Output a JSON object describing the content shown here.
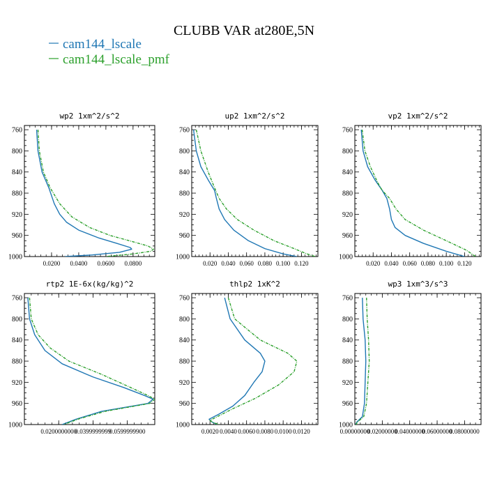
{
  "page": {
    "title": "CLUBB VAR at280E,5N"
  },
  "legend": [
    {
      "label": "cam144_lscale",
      "color": "#1f77b4"
    },
    {
      "label": "cam144_lscale_pmf",
      "color": "#2ca02c"
    }
  ],
  "chart_data": [
    {
      "type": "line",
      "title": "wp2  1xm^2/s^2",
      "xlim": [
        0.0,
        0.096
      ],
      "ylim": [
        1000,
        752
      ],
      "y_ticks": [
        "760",
        "800",
        "840",
        "880",
        "920",
        "960",
        "1000"
      ],
      "x_ticks": [
        {
          "v": 0.02,
          "label": "0.0200"
        },
        {
          "v": 0.04,
          "label": "0.0400"
        },
        {
          "v": 0.06,
          "label": "0.0600"
        },
        {
          "v": 0.08,
          "label": "0.0800"
        }
      ],
      "series": [
        {
          "name": "cam144_lscale",
          "color": "#1f77b4",
          "dash": false,
          "points": [
            [
              0.009,
              760
            ],
            [
              0.01,
              800
            ],
            [
              0.013,
              840
            ],
            [
              0.018,
              870
            ],
            [
              0.022,
              900
            ],
            [
              0.026,
              920
            ],
            [
              0.031,
              935
            ],
            [
              0.04,
              950
            ],
            [
              0.055,
              965
            ],
            [
              0.068,
              975
            ],
            [
              0.078,
              983
            ],
            [
              0.079,
              986
            ],
            [
              0.07,
              992
            ],
            [
              0.05,
              997
            ],
            [
              0.03,
              1000
            ]
          ]
        },
        {
          "name": "cam144_lscale_pmf",
          "color": "#2ca02c",
          "dash": true,
          "points": [
            [
              0.01,
              760
            ],
            [
              0.011,
              800
            ],
            [
              0.014,
              840
            ],
            [
              0.019,
              870
            ],
            [
              0.026,
              900
            ],
            [
              0.035,
              925
            ],
            [
              0.048,
              945
            ],
            [
              0.063,
              960
            ],
            [
              0.08,
              972
            ],
            [
              0.091,
              980
            ],
            [
              0.095,
              986
            ],
            [
              0.093,
              990
            ],
            [
              0.08,
              995
            ],
            [
              0.06,
              1000
            ]
          ]
        }
      ]
    },
    {
      "type": "line",
      "title": "up2  1xm^2/s^2",
      "xlim": [
        0.0,
        0.138
      ],
      "ylim": [
        1000,
        752
      ],
      "y_ticks": [
        "760",
        "800",
        "840",
        "880",
        "920",
        "960",
        "1000"
      ],
      "x_ticks": [
        {
          "v": 0.02,
          "label": "0.020"
        },
        {
          "v": 0.04,
          "label": "0.040"
        },
        {
          "v": 0.06,
          "label": "0.060"
        },
        {
          "v": 0.08,
          "label": "0.080"
        },
        {
          "v": 0.1,
          "label": "0.100"
        },
        {
          "v": 0.12,
          "label": "0.120"
        }
      ],
      "series": [
        {
          "name": "cam144_lscale",
          "color": "#1f77b4",
          "dash": false,
          "points": [
            [
              0.002,
              760
            ],
            [
              0.005,
              800
            ],
            [
              0.01,
              830
            ],
            [
              0.018,
              855
            ],
            [
              0.025,
              875
            ],
            [
              0.027,
              890
            ],
            [
              0.03,
              910
            ],
            [
              0.036,
              930
            ],
            [
              0.046,
              950
            ],
            [
              0.062,
              970
            ],
            [
              0.08,
              985
            ],
            [
              0.1,
              995
            ],
            [
              0.115,
              1000
            ]
          ]
        },
        {
          "name": "cam144_lscale_pmf",
          "color": "#2ca02c",
          "dash": true,
          "points": [
            [
              0.005,
              760
            ],
            [
              0.01,
              800
            ],
            [
              0.018,
              840
            ],
            [
              0.025,
              870
            ],
            [
              0.03,
              890
            ],
            [
              0.038,
              910
            ],
            [
              0.05,
              930
            ],
            [
              0.068,
              950
            ],
            [
              0.09,
              970
            ],
            [
              0.112,
              985
            ],
            [
              0.126,
              995
            ],
            [
              0.135,
              1000
            ]
          ]
        }
      ]
    },
    {
      "type": "line",
      "title": "vp2  1xm^2/s^2",
      "xlim": [
        0.0,
        0.138
      ],
      "ylim": [
        1000,
        752
      ],
      "y_ticks": [
        "760",
        "800",
        "840",
        "880",
        "920",
        "960",
        "1000"
      ],
      "x_ticks": [
        {
          "v": 0.02,
          "label": "0.020"
        },
        {
          "v": 0.04,
          "label": "0.040"
        },
        {
          "v": 0.06,
          "label": "0.060"
        },
        {
          "v": 0.08,
          "label": "0.080"
        },
        {
          "v": 0.1,
          "label": "0.100"
        },
        {
          "v": 0.12,
          "label": "0.120"
        }
      ],
      "series": [
        {
          "name": "cam144_lscale",
          "color": "#1f77b4",
          "dash": false,
          "points": [
            [
              0.007,
              760
            ],
            [
              0.009,
              800
            ],
            [
              0.014,
              830
            ],
            [
              0.022,
              855
            ],
            [
              0.03,
              875
            ],
            [
              0.035,
              890
            ],
            [
              0.038,
              910
            ],
            [
              0.04,
              930
            ],
            [
              0.044,
              945
            ],
            [
              0.055,
              960
            ],
            [
              0.075,
              975
            ],
            [
              0.1,
              990
            ],
            [
              0.12,
              1000
            ]
          ]
        },
        {
          "name": "cam144_lscale_pmf",
          "color": "#2ca02c",
          "dash": true,
          "points": [
            [
              0.008,
              760
            ],
            [
              0.011,
              800
            ],
            [
              0.017,
              830
            ],
            [
              0.025,
              860
            ],
            [
              0.03,
              875
            ],
            [
              0.038,
              890
            ],
            [
              0.045,
              910
            ],
            [
              0.055,
              930
            ],
            [
              0.075,
              950
            ],
            [
              0.1,
              970
            ],
            [
              0.122,
              988
            ],
            [
              0.132,
              1000
            ]
          ]
        }
      ]
    },
    {
      "type": "line",
      "title": "rtp2  1E-6x(kg/kg)^2",
      "xlim": [
        0.0,
        0.076
      ],
      "ylim": [
        1000,
        752
      ],
      "y_ticks": [
        "760",
        "800",
        "840",
        "880",
        "920",
        "960",
        "1000"
      ],
      "x_ticks": [
        {
          "v": 0.02,
          "label": "0.0200000000"
        },
        {
          "v": 0.04,
          "label": "0.0399999999"
        },
        {
          "v": 0.06,
          "label": "0.0599999900"
        }
      ],
      "series": [
        {
          "name": "cam144_lscale",
          "color": "#1f77b4",
          "dash": false,
          "points": [
            [
              0.002,
              760
            ],
            [
              0.003,
              800
            ],
            [
              0.006,
              830
            ],
            [
              0.012,
              860
            ],
            [
              0.022,
              885
            ],
            [
              0.04,
              910
            ],
            [
              0.058,
              930
            ],
            [
              0.07,
              945
            ],
            [
              0.075,
              952
            ],
            [
              0.072,
              960
            ],
            [
              0.045,
              975
            ],
            [
              0.03,
              990
            ],
            [
              0.022,
              1000
            ]
          ]
        },
        {
          "name": "cam144_lscale_pmf",
          "color": "#2ca02c",
          "dash": true,
          "points": [
            [
              0.003,
              760
            ],
            [
              0.004,
              800
            ],
            [
              0.008,
              830
            ],
            [
              0.015,
              855
            ],
            [
              0.026,
              880
            ],
            [
              0.045,
              905
            ],
            [
              0.062,
              930
            ],
            [
              0.072,
              945
            ],
            [
              0.076,
              952
            ],
            [
              0.073,
              960
            ],
            [
              0.047,
              975
            ],
            [
              0.031,
              990
            ],
            [
              0.023,
              1000
            ]
          ]
        }
      ]
    },
    {
      "type": "line",
      "title": "thlp2  1xK^2",
      "xlim": [
        0.0,
        0.0138
      ],
      "ylim": [
        1000,
        752
      ],
      "y_ticks": [
        "760",
        "800",
        "840",
        "880",
        "920",
        "960",
        "1000"
      ],
      "x_ticks": [
        {
          "v": 0.002,
          "label": "0.0020"
        },
        {
          "v": 0.004,
          "label": "0.0040"
        },
        {
          "v": 0.006,
          "label": "0.0060"
        },
        {
          "v": 0.008,
          "label": "0.0080"
        },
        {
          "v": 0.01,
          "label": "0.0100"
        },
        {
          "v": 0.012,
          "label": "0.0120"
        }
      ],
      "series": [
        {
          "name": "cam144_lscale",
          "color": "#1f77b4",
          "dash": false,
          "points": [
            [
              0.0036,
              760
            ],
            [
              0.0042,
              800
            ],
            [
              0.0058,
              840
            ],
            [
              0.0075,
              865
            ],
            [
              0.008,
              880
            ],
            [
              0.0077,
              900
            ],
            [
              0.0068,
              920
            ],
            [
              0.0058,
              945
            ],
            [
              0.0045,
              965
            ],
            [
              0.003,
              980
            ],
            [
              0.0019,
              990
            ],
            [
              0.0022,
              995
            ],
            [
              0.0028,
              1000
            ]
          ]
        },
        {
          "name": "cam144_lscale_pmf",
          "color": "#2ca02c",
          "dash": true,
          "points": [
            [
              0.004,
              760
            ],
            [
              0.0047,
              800
            ],
            [
              0.0075,
              840
            ],
            [
              0.0105,
              865
            ],
            [
              0.0115,
              880
            ],
            [
              0.0112,
              900
            ],
            [
              0.0095,
              925
            ],
            [
              0.007,
              950
            ],
            [
              0.0045,
              970
            ],
            [
              0.0028,
              985
            ],
            [
              0.002,
              992
            ],
            [
              0.0023,
              996
            ],
            [
              0.003,
              1000
            ]
          ]
        }
      ]
    },
    {
      "type": "line",
      "title": "wp3  1xm^3/s^3",
      "xlim": [
        0.0,
        0.092
      ],
      "ylim": [
        1000,
        752
      ],
      "y_ticks": [
        "760",
        "800",
        "840",
        "880",
        "920",
        "960",
        "1000"
      ],
      "x_ticks": [
        {
          "v": 0.0,
          "label": "0.00000000"
        },
        {
          "v": 0.02,
          "label": "0.02000000"
        },
        {
          "v": 0.04,
          "label": "0.04000000"
        },
        {
          "v": 0.06,
          "label": "0.06000000"
        },
        {
          "v": 0.08,
          "label": "0.08000000"
        }
      ],
      "series": [
        {
          "name": "cam144_lscale",
          "color": "#1f77b4",
          "dash": false,
          "points": [
            [
              0.0055,
              760
            ],
            [
              0.006,
              800
            ],
            [
              0.0075,
              840
            ],
            [
              0.008,
              880
            ],
            [
              0.0075,
              920
            ],
            [
              0.007,
              960
            ],
            [
              0.0055,
              985
            ],
            [
              0.0015,
              995
            ],
            [
              0.0005,
              1000
            ]
          ]
        },
        {
          "name": "cam144_lscale_pmf",
          "color": "#2ca02c",
          "dash": true,
          "points": [
            [
              0.0085,
              760
            ],
            [
              0.009,
              800
            ],
            [
              0.01,
              840
            ],
            [
              0.0105,
              880
            ],
            [
              0.0095,
              920
            ],
            [
              0.0085,
              960
            ],
            [
              0.0065,
              985
            ],
            [
              0.002,
              995
            ],
            [
              0.0008,
              1000
            ]
          ]
        }
      ]
    }
  ]
}
